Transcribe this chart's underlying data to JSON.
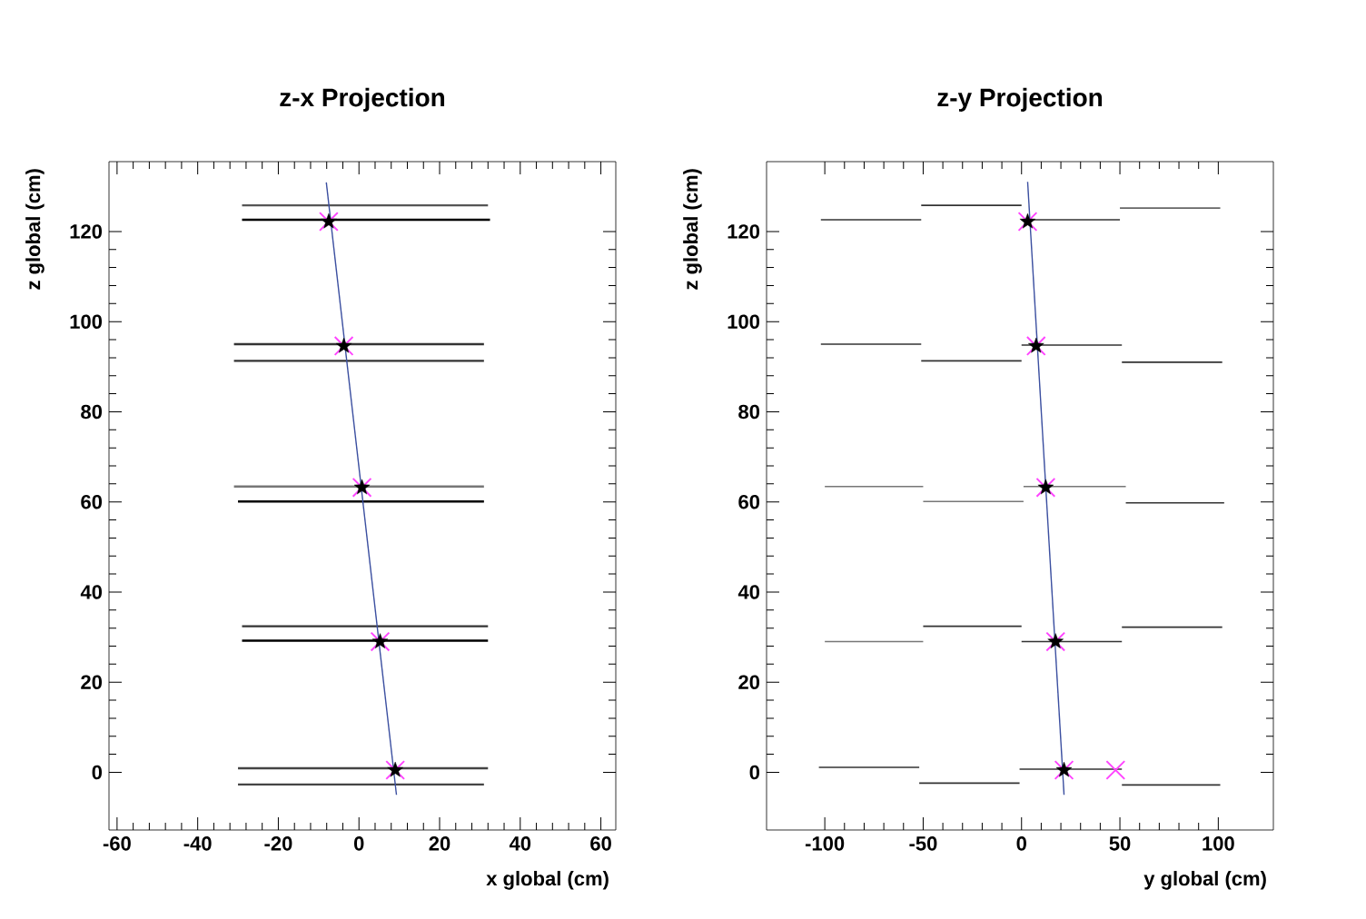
{
  "chart_data": [
    {
      "type": "scatter",
      "title": "z-x Projection",
      "xlabel": "x global (cm)",
      "ylabel": "z global (cm)",
      "xlim": [
        -62,
        63.7
      ],
      "ylim": [
        -12.8,
        135.5
      ],
      "xticks": [
        -60,
        -40,
        -20,
        0,
        20,
        40,
        60
      ],
      "yticks": [
        0,
        20,
        40,
        60,
        80,
        100,
        120
      ],
      "series": [
        {
          "type": "line",
          "color": "#555555",
          "x": [
            -29,
            32
          ],
          "values": [
            125.8,
            125.8
          ]
        },
        {
          "type": "line",
          "color": "#000000",
          "x": [
            -29,
            32.5
          ],
          "values": [
            122.6,
            122.6
          ]
        },
        {
          "type": "line",
          "color": "#333333",
          "x": [
            -31,
            31
          ],
          "values": [
            95.0,
            95.0
          ]
        },
        {
          "type": "line",
          "color": "#333333",
          "x": [
            -31,
            31
          ],
          "values": [
            91.3,
            91.3
          ]
        },
        {
          "type": "line",
          "color": "#777777",
          "x": [
            -31,
            31
          ],
          "values": [
            63.4,
            63.4
          ]
        },
        {
          "type": "line",
          "color": "#000000",
          "x": [
            -30,
            31
          ],
          "values": [
            60.1,
            60.1
          ]
        },
        {
          "type": "line",
          "color": "#333333",
          "x": [
            -29,
            32
          ],
          "values": [
            32.4,
            32.4
          ]
        },
        {
          "type": "line",
          "color": "#000000",
          "x": [
            -29,
            32
          ],
          "values": [
            29.2,
            29.2
          ]
        },
        {
          "type": "line",
          "color": "#444444",
          "x": [
            -30,
            32
          ],
          "values": [
            0.9,
            0.9
          ]
        },
        {
          "type": "line",
          "color": "#444444",
          "x": [
            -30,
            31
          ],
          "values": [
            -2.7,
            -2.7
          ]
        },
        {
          "type": "line",
          "color": "#3b4fa0",
          "x": [
            -8.1,
            9.3
          ],
          "values": [
            130.9,
            -5
          ]
        },
        {
          "color": "#ff44ff",
          "marker": "cross",
          "x": [
            -7.5,
            -3.75,
            0.75,
            5.25,
            9
          ],
          "values": [
            122.2,
            94.6,
            63.2,
            29,
            0.5
          ]
        },
        {
          "color": "#000000",
          "marker": "star",
          "x": [
            -7.5,
            -3.75,
            0.75,
            5.25,
            9
          ],
          "values": [
            122.2,
            94.6,
            63.2,
            29,
            0.5
          ]
        }
      ]
    },
    {
      "type": "scatter",
      "title": "z-y Projection",
      "xlabel": "y global (cm)",
      "ylabel": "z global (cm)",
      "xlim": [
        -129.6,
        128
      ],
      "ylim": [
        -12.8,
        135.5
      ],
      "xticks": [
        -100,
        -50,
        0,
        50,
        100
      ],
      "yticks": [
        0,
        20,
        40,
        60,
        80,
        100,
        120
      ],
      "series": [
        {
          "type": "line",
          "color": "#333333",
          "x": [
            -102,
            -51
          ],
          "values": [
            122.6,
            122.6
          ]
        },
        {
          "type": "line",
          "color": "#333333",
          "x": [
            -51,
            0
          ],
          "values": [
            125.8,
            125.8
          ]
        },
        {
          "type": "line",
          "color": "#333333",
          "x": [
            0,
            50
          ],
          "values": [
            122.6,
            122.6
          ]
        },
        {
          "type": "line",
          "color": "#666666",
          "x": [
            50,
            101
          ],
          "values": [
            125.2,
            125.2
          ]
        },
        {
          "type": "line",
          "color": "#333333",
          "x": [
            -102,
            -51
          ],
          "values": [
            95.0,
            95.0
          ]
        },
        {
          "type": "line",
          "color": "#333333",
          "x": [
            -51,
            0
          ],
          "values": [
            91.3,
            91.3
          ]
        },
        {
          "type": "line",
          "color": "#333333",
          "x": [
            0,
            51
          ],
          "values": [
            94.8,
            94.8
          ]
        },
        {
          "type": "line",
          "color": "#333333",
          "x": [
            51,
            102
          ],
          "values": [
            91.0,
            91.0
          ]
        },
        {
          "type": "line",
          "color": "#777777",
          "x": [
            -100,
            -50
          ],
          "values": [
            63.4,
            63.4
          ]
        },
        {
          "type": "line",
          "color": "#777777",
          "x": [
            -50,
            1
          ],
          "values": [
            60.1,
            60.1
          ]
        },
        {
          "type": "line",
          "color": "#777777",
          "x": [
            1,
            53
          ],
          "values": [
            63.4,
            63.4
          ]
        },
        {
          "type": "line",
          "color": "#333333",
          "x": [
            53,
            103
          ],
          "values": [
            59.8,
            59.8
          ]
        },
        {
          "type": "line",
          "color": "#777777",
          "x": [
            -100,
            -50
          ],
          "values": [
            29.0,
            29.0
          ]
        },
        {
          "type": "line",
          "color": "#333333",
          "x": [
            -50,
            0
          ],
          "values": [
            32.4,
            32.4
          ]
        },
        {
          "type": "line",
          "color": "#333333",
          "x": [
            0,
            51
          ],
          "values": [
            29.0,
            29.0
          ]
        },
        {
          "type": "line",
          "color": "#333333",
          "x": [
            51,
            102
          ],
          "values": [
            32.2,
            32.2
          ]
        },
        {
          "type": "line",
          "color": "#333333",
          "x": [
            -103,
            -52
          ],
          "values": [
            1.1,
            1.1
          ]
        },
        {
          "type": "line",
          "color": "#333333",
          "x": [
            -52,
            -1
          ],
          "values": [
            -2.4,
            -2.4
          ]
        },
        {
          "type": "line",
          "color": "#333333",
          "x": [
            -1,
            51
          ],
          "values": [
            0.7,
            0.7
          ]
        },
        {
          "type": "line",
          "color": "#333333",
          "x": [
            51,
            101
          ],
          "values": [
            -2.8,
            -2.8
          ]
        },
        {
          "type": "line",
          "color": "#3b4fa0",
          "x": [
            3.1,
            21.6
          ],
          "values": [
            131,
            -5
          ]
        },
        {
          "color": "#ff44ff",
          "marker": "cross",
          "x": [
            3.1,
            7.4,
            12.3,
            17.3,
            21.6,
            47.8
          ],
          "values": [
            122.2,
            94.6,
            63.2,
            29,
            0.5,
            0.5
          ]
        },
        {
          "color": "#000000",
          "marker": "star",
          "x": [
            3.1,
            7.4,
            12.3,
            17.3,
            21.6
          ],
          "values": [
            122.2,
            94.6,
            63.2,
            29,
            0.5
          ]
        }
      ]
    }
  ]
}
